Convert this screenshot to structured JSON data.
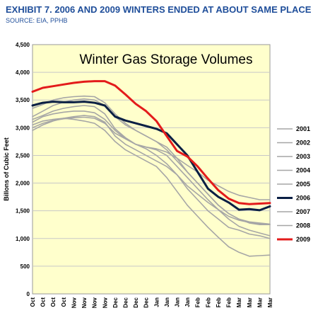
{
  "header": {
    "exhibit_title": "EXHIBIT 7. 2006 AND 2009 WINTERS ENDED AT ABOUT SAME PLACE",
    "source": "SOURCE: EIA, PPHB"
  },
  "colors": {
    "plot_background": "#ffffcc",
    "gray_series": "#a6a6a6",
    "series_2006": "#0a1f44",
    "series_2009": "#e31b1b",
    "title_blue": "#1f4e9a"
  },
  "chart_data": {
    "type": "line",
    "title": "Winter Gas Storage Volumes",
    "xlabel": "",
    "ylabel": "Billons of Cubic Feet",
    "ylim": [
      0,
      4500
    ],
    "yticks": [
      0,
      500,
      1000,
      1500,
      2000,
      2500,
      3000,
      3500,
      4000,
      4500
    ],
    "ytick_labels": [
      "0",
      "500",
      "1,000",
      "1,500",
      "2,000",
      "2,500",
      "3,000",
      "3,500",
      "4,000",
      "4,500"
    ],
    "grid": true,
    "legend_position": "right",
    "categories": [
      "Oct",
      "Oct",
      "Oct",
      "Oct",
      "Nov",
      "Nov",
      "Nov",
      "Nov",
      "Dec",
      "Dec",
      "Dec",
      "Dec",
      "Jan",
      "Jan",
      "Jan",
      "Jan",
      "Feb",
      "Feb",
      "Feb",
      "Feb",
      "Mar",
      "Mar",
      "Mar",
      "Mar"
    ],
    "series": [
      {
        "name": "2001",
        "color": "#a6a6a6",
        "width": 1.6,
        "values": [
          3150,
          3220,
          3300,
          3350,
          3380,
          3400,
          3380,
          3250,
          2980,
          2820,
          2700,
          2620,
          2500,
          2350,
          2150,
          1950,
          1800,
          1650,
          1520,
          1400,
          1330,
          1290,
          1270,
          1250
        ]
      },
      {
        "name": "2002",
        "color": "#a6a6a6",
        "width": 1.6,
        "values": [
          3050,
          3120,
          3150,
          3170,
          3150,
          3120,
          3080,
          2950,
          2750,
          2600,
          2500,
          2400,
          2300,
          2100,
          1850,
          1600,
          1400,
          1200,
          1020,
          850,
          750,
          680,
          690,
          700
        ]
      },
      {
        "name": "2003",
        "color": "#a6a6a6",
        "width": 1.6,
        "values": [
          3200,
          3300,
          3400,
          3460,
          3500,
          3520,
          3500,
          3400,
          3200,
          3050,
          2950,
          2850,
          2750,
          2650,
          2450,
          2200,
          2000,
          1800,
          1600,
          1450,
          1350,
          1300,
          1280,
          1260
        ]
      },
      {
        "name": "2004",
        "color": "#a6a6a6",
        "width": 1.6,
        "values": [
          3350,
          3420,
          3500,
          3540,
          3560,
          3570,
          3560,
          3450,
          3250,
          3080,
          2950,
          2850,
          2750,
          2600,
          2400,
          2200,
          2000,
          1800,
          1600,
          1450,
          1350,
          1280,
          1250,
          1250
        ]
      },
      {
        "name": "2005",
        "color": "#a6a6a6",
        "width": 1.6,
        "values": [
          3100,
          3200,
          3250,
          3280,
          3300,
          3300,
          3270,
          3150,
          2950,
          2800,
          2700,
          2650,
          2600,
          2500,
          2300,
          2100,
          1900,
          1700,
          1520,
          1350,
          1220,
          1150,
          1100,
          1050
        ]
      },
      {
        "name": "2006",
        "color": "#0a1f44",
        "width": 3,
        "values": [
          3400,
          3450,
          3470,
          3460,
          3460,
          3470,
          3450,
          3400,
          3200,
          3130,
          3080,
          3030,
          2980,
          2900,
          2700,
          2500,
          2200,
          1900,
          1750,
          1650,
          1520,
          1530,
          1510,
          1580
        ]
      },
      {
        "name": "2007",
        "color": "#a6a6a6",
        "width": 1.6,
        "values": [
          2950,
          3050,
          3120,
          3170,
          3200,
          3220,
          3200,
          3100,
          2850,
          2700,
          2600,
          2500,
          2400,
          2300,
          2150,
          1900,
          1700,
          1500,
          1350,
          1200,
          1150,
          1080,
          1050,
          1000
        ]
      },
      {
        "name": "2008",
        "color": "#a6a6a6",
        "width": 1.6,
        "values": [
          3000,
          3080,
          3130,
          3160,
          3180,
          3190,
          3170,
          3080,
          2900,
          2800,
          2700,
          2650,
          2620,
          2560,
          2450,
          2320,
          2200,
          2050,
          1950,
          1850,
          1780,
          1740,
          1700,
          1700
        ]
      },
      {
        "name": "2009",
        "color": "#e31b1b",
        "width": 3,
        "values": [
          3650,
          3720,
          3750,
          3780,
          3810,
          3830,
          3840,
          3840,
          3760,
          3600,
          3430,
          3300,
          3120,
          2850,
          2580,
          2480,
          2300,
          2080,
          1870,
          1720,
          1640,
          1620,
          1630,
          1640
        ]
      }
    ]
  }
}
